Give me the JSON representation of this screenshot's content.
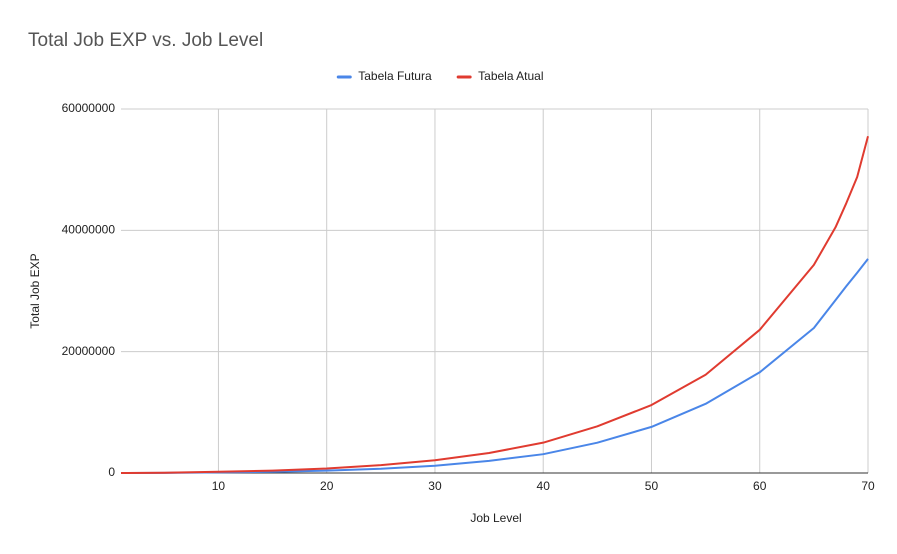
{
  "chart_data": {
    "type": "line",
    "title": "Total Job EXP vs. Job Level",
    "x_label": "Job Level",
    "y_label": "Total Job EXP",
    "x": [
      1,
      5,
      10,
      15,
      20,
      25,
      30,
      35,
      40,
      45,
      50,
      55,
      60,
      65,
      67,
      68,
      69,
      70
    ],
    "series": [
      {
        "name": "Tabela Futura",
        "color": "#4a86e8",
        "values": [
          0,
          30000,
          100000,
          200000,
          400000,
          700000,
          1200000,
          2000000,
          3100000,
          5000000,
          7600000,
          11400000,
          16600000,
          23900000,
          28500000,
          30800000,
          33000000,
          35300000
        ]
      },
      {
        "name": "Tabela Atual",
        "color": "#e03b30",
        "values": [
          0,
          50000,
          200000,
          400000,
          750000,
          1300000,
          2100000,
          3300000,
          5000000,
          7700000,
          11200000,
          16200000,
          23600000,
          34300000,
          40500000,
          44500000,
          48800000,
          55500000
        ]
      }
    ],
    "xlim": [
      1,
      70
    ],
    "xticks": [
      10,
      20,
      30,
      40,
      50,
      60,
      70
    ],
    "ylim": [
      0,
      60000000
    ],
    "yticks": [
      0,
      20000000,
      40000000,
      60000000
    ],
    "grid": true,
    "legend": "top"
  }
}
